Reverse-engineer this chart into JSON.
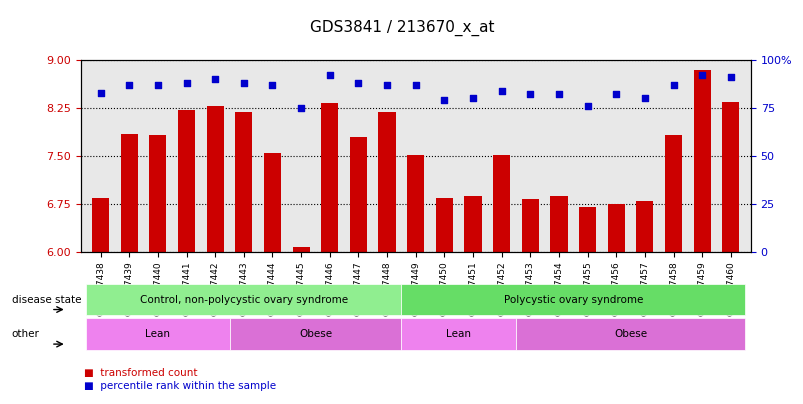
{
  "title": "GDS3841 / 213670_x_at",
  "samples": [
    "GSM277438",
    "GSM277439",
    "GSM277440",
    "GSM277441",
    "GSM277442",
    "GSM277443",
    "GSM277444",
    "GSM277445",
    "GSM277446",
    "GSM277447",
    "GSM277448",
    "GSM277449",
    "GSM277450",
    "GSM277451",
    "GSM277452",
    "GSM277453",
    "GSM277454",
    "GSM277455",
    "GSM277456",
    "GSM277457",
    "GSM277458",
    "GSM277459",
    "GSM277460"
  ],
  "bar_values": [
    6.85,
    7.85,
    7.82,
    8.22,
    8.28,
    8.18,
    7.55,
    6.08,
    8.32,
    7.8,
    8.18,
    7.52,
    6.85,
    6.88,
    7.52,
    6.83,
    6.88,
    6.7,
    6.75,
    6.8,
    7.82,
    8.85,
    8.35
  ],
  "dot_values": [
    83,
    87,
    87,
    88,
    90,
    88,
    87,
    75,
    92,
    88,
    87,
    87,
    79,
    80,
    84,
    82,
    82,
    76,
    82,
    80,
    87,
    92,
    91
  ],
  "ylim_left": [
    6,
    9
  ],
  "ylim_right": [
    0,
    100
  ],
  "yticks_left": [
    6,
    6.75,
    7.5,
    8.25,
    9
  ],
  "yticks_right": [
    0,
    25,
    50,
    75,
    100
  ],
  "ytick_labels_right": [
    "0",
    "25",
    "50",
    "75",
    "100%"
  ],
  "bar_color": "#cc0000",
  "dot_color": "#0000cc",
  "bar_bottom": 6,
  "disease_state_groups": [
    {
      "label": "Control, non-polycystic ovary syndrome",
      "start": 0,
      "end": 11,
      "color": "#90ee90"
    },
    {
      "label": "Polycystic ovary syndrome",
      "start": 11,
      "end": 23,
      "color": "#66dd66"
    }
  ],
  "other_groups": [
    {
      "label": "Lean",
      "start": 0,
      "end": 5,
      "color": "#ee82ee"
    },
    {
      "label": "Obese",
      "start": 5,
      "end": 11,
      "color": "#da70d6"
    },
    {
      "label": "Lean",
      "start": 11,
      "end": 15,
      "color": "#ee82ee"
    },
    {
      "label": "Obese",
      "start": 15,
      "end": 23,
      "color": "#da70d6"
    }
  ],
  "legend_items": [
    {
      "label": "transformed count",
      "color": "#cc0000"
    },
    {
      "label": "percentile rank within the sample",
      "color": "#0000cc"
    }
  ],
  "ax_bg_color": "#e8e8e8",
  "grid_color": "black",
  "label_row1": "disease state",
  "label_row2": "other",
  "title_fontsize": 11,
  "left_tick_color": "#cc0000",
  "right_tick_color": "#0000cc"
}
